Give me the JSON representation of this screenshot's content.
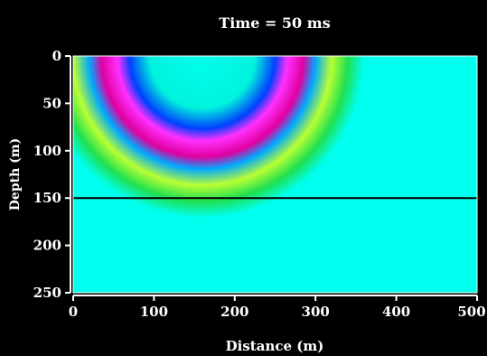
{
  "chart_data": {
    "type": "heatmap",
    "title": "Time = 50 ms",
    "xlabel": "Distance (m)",
    "ylabel": "Depth (m)",
    "xlim": [
      0,
      500
    ],
    "ylim": [
      0,
      250
    ],
    "y_inverted": true,
    "x_ticks": [
      "0",
      "100",
      "200",
      "300",
      "400",
      "500"
    ],
    "y_ticks": [
      "0",
      "50",
      "100",
      "150",
      "200",
      "250"
    ],
    "background_color": "#00ffee",
    "interface_depth": 150,
    "wavefront": {
      "source_x": 160,
      "source_depth": 0,
      "ring_sequence": [
        {
          "radius": 65,
          "color": "#00f2dc"
        },
        {
          "radius": 90,
          "color": "#0040ff"
        },
        {
          "radius": 105,
          "color": "#ff30ff"
        },
        {
          "radius": 125,
          "color": "#e000a0"
        },
        {
          "radius": 140,
          "color": "#00a8ff"
        },
        {
          "radius": 160,
          "color": "#b8ff33"
        },
        {
          "radius": 180,
          "color": "#20e050"
        },
        {
          "radius": 200,
          "color": "#00ffee"
        }
      ]
    }
  }
}
